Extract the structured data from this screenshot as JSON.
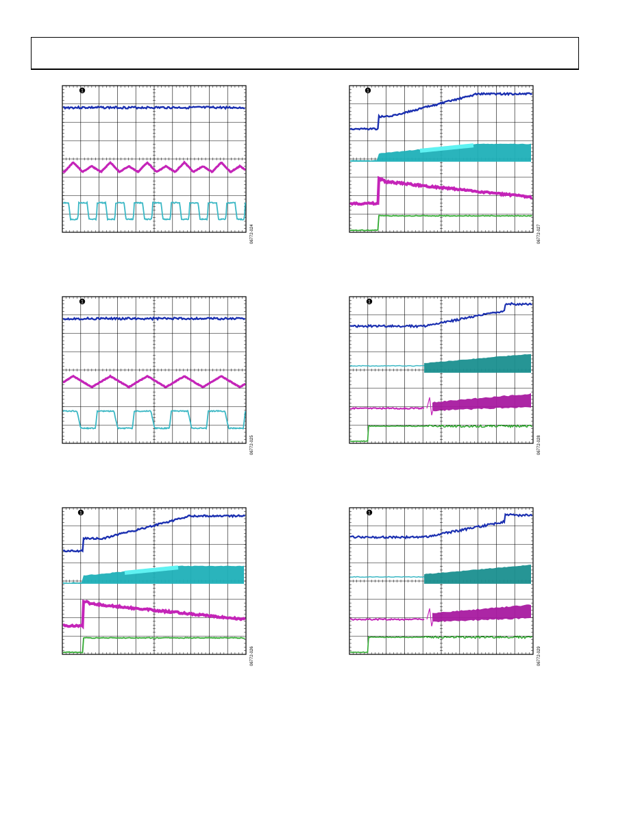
{
  "page": {
    "header_text": ""
  },
  "scopes": [
    {
      "id": "scope-1",
      "figure_id": "06772-024",
      "marker": "1",
      "kind": "flat-tri-square"
    },
    {
      "id": "scope-2",
      "figure_id": "06772-027",
      "marker": "1",
      "kind": "ramp-step"
    },
    {
      "id": "scope-3",
      "figure_id": "06772-025",
      "marker": "1",
      "kind": "flat-tri-square"
    },
    {
      "id": "scope-4",
      "figure_id": "06772-028",
      "marker": "1",
      "kind": "ramp-late"
    },
    {
      "id": "scope-5",
      "figure_id": "06772-026",
      "marker": "1",
      "kind": "ramp-step"
    },
    {
      "id": "scope-6",
      "figure_id": "06772-029",
      "marker": "1",
      "kind": "ramp-late"
    }
  ],
  "colors": {
    "ch1": "#1a2fb0",
    "ch2": "#3ab7c4",
    "ch3": "#c424b8",
    "ch4": "#2fa82f",
    "grid": "#000000"
  }
}
